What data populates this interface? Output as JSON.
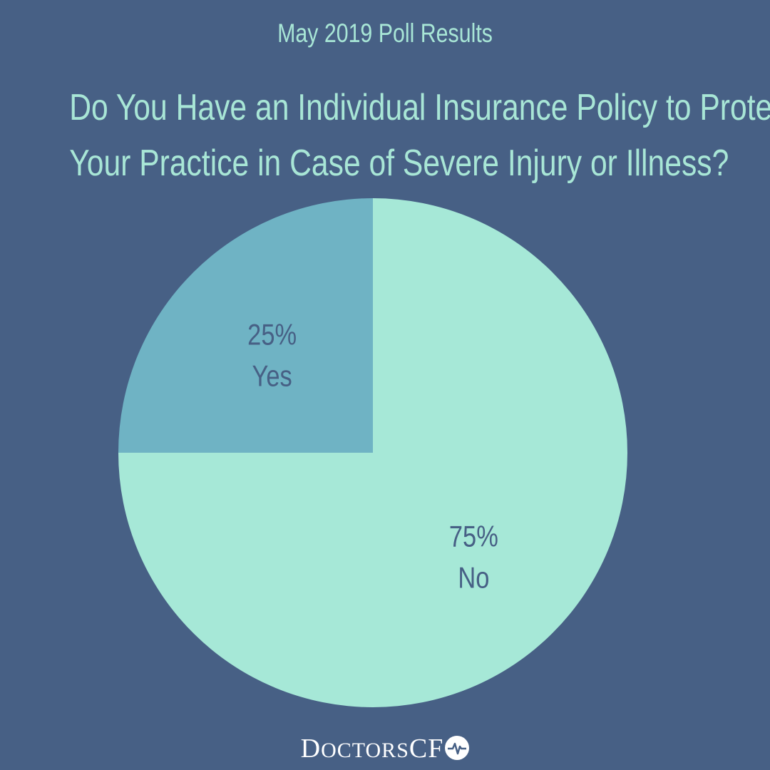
{
  "chart_data": {
    "type": "pie",
    "subtitle": "May 2019 Poll Results",
    "title_lines": [
      "Do You Have an Individual Insurance Policy to Protect",
      "Your Practice in Case of Severe Injury or Illness?"
    ],
    "slices": [
      {
        "label": "Yes",
        "value": 25,
        "value_text": "25%",
        "color": "#6fb3c4"
      },
      {
        "label": "No",
        "value": 75,
        "value_text": "75%",
        "color": "#a6e8d7"
      }
    ],
    "start_angle_deg": 0,
    "direction": "counterclockwise",
    "legend": "none"
  },
  "brand": {
    "logo_text": "DoctorsCFO",
    "colors": {
      "background": "#476085",
      "text": "#a8e6d6",
      "logo": "#ffffff"
    }
  }
}
